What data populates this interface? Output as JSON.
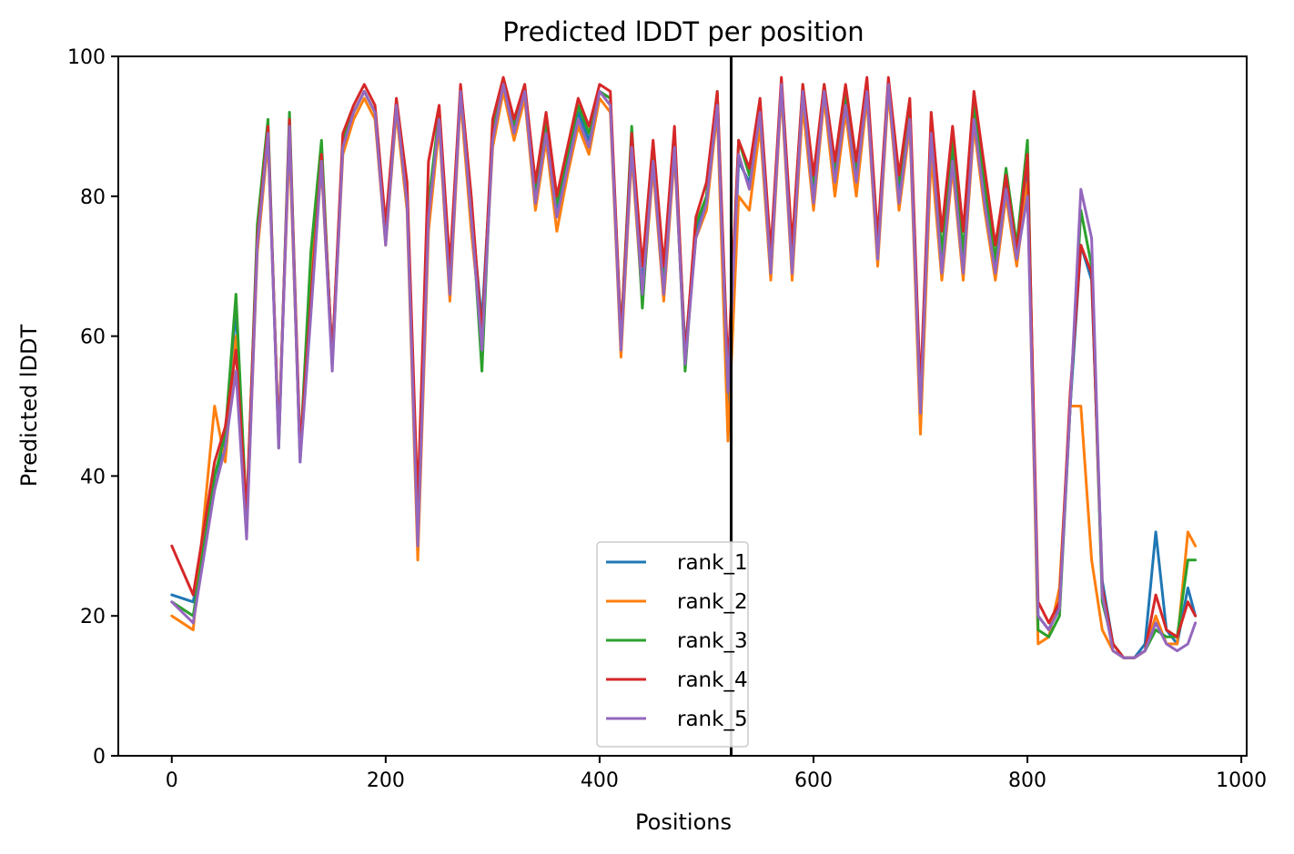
{
  "chart_data": {
    "type": "line",
    "title": "Predicted lDDT per position",
    "xlabel": "Positions",
    "ylabel": "Predicted lDDT",
    "xlim": [
      -50,
      1005
    ],
    "ylim": [
      0,
      100
    ],
    "x_ticks": [
      0,
      200,
      400,
      600,
      800,
      1000
    ],
    "y_ticks": [
      0,
      20,
      40,
      60,
      80,
      100
    ],
    "grid": false,
    "legend_position": "bottom-center",
    "vline_x": 523,
    "vline_color": "#000000",
    "x": [
      0,
      20,
      40,
      50,
      60,
      70,
      80,
      90,
      100,
      110,
      120,
      130,
      140,
      150,
      160,
      170,
      180,
      190,
      200,
      210,
      220,
      230,
      240,
      250,
      260,
      270,
      280,
      290,
      300,
      310,
      320,
      330,
      340,
      350,
      360,
      370,
      380,
      390,
      400,
      410,
      420,
      430,
      440,
      450,
      460,
      470,
      480,
      490,
      500,
      510,
      520,
      530,
      540,
      550,
      560,
      570,
      580,
      590,
      600,
      610,
      620,
      630,
      640,
      650,
      660,
      670,
      680,
      690,
      700,
      710,
      720,
      730,
      740,
      750,
      760,
      770,
      780,
      790,
      800,
      810,
      820,
      830,
      840,
      850,
      860,
      870,
      880,
      890,
      900,
      910,
      920,
      930,
      940,
      950,
      957
    ],
    "series": [
      {
        "name": "rank_1",
        "color": "#1f77b4",
        "values": [
          23,
          22,
          38,
          45,
          64,
          33,
          75,
          89,
          45,
          90,
          42,
          70,
          86,
          57,
          88,
          92,
          95,
          92,
          75,
          93,
          80,
          30,
          78,
          92,
          68,
          95,
          78,
          62,
          89,
          96,
          90,
          95,
          80,
          90,
          78,
          85,
          92,
          88,
          95,
          94,
          58,
          88,
          67,
          86,
          67,
          88,
          58,
          75,
          80,
          93,
          50,
          85,
          82,
          92,
          70,
          96,
          70,
          95,
          80,
          95,
          83,
          94,
          83,
          95,
          72,
          96,
          80,
          92,
          48,
          88,
          70,
          86,
          70,
          92,
          80,
          70,
          82,
          72,
          85,
          20,
          18,
          22,
          50,
          73,
          68,
          25,
          16,
          14,
          14,
          16,
          32,
          18,
          16,
          24,
          20
        ]
      },
      {
        "name": "rank_2",
        "color": "#ff7f0e",
        "values": [
          20,
          18,
          50,
          42,
          60,
          32,
          72,
          88,
          46,
          88,
          43,
          68,
          84,
          56,
          86,
          91,
          94,
          91,
          73,
          92,
          78,
          28,
          75,
          90,
          65,
          94,
          75,
          60,
          87,
          95,
          88,
          94,
          78,
          88,
          75,
          83,
          90,
          86,
          94,
          92,
          57,
          86,
          65,
          84,
          65,
          86,
          57,
          74,
          78,
          92,
          45,
          80,
          78,
          90,
          68,
          95,
          68,
          93,
          78,
          94,
          80,
          92,
          80,
          94,
          70,
          95,
          78,
          90,
          46,
          86,
          68,
          84,
          68,
          90,
          78,
          68,
          80,
          70,
          82,
          16,
          17,
          24,
          50,
          50,
          28,
          18,
          15,
          14,
          14,
          15,
          20,
          16,
          16,
          32,
          30
        ]
      },
      {
        "name": "rank_3",
        "color": "#2ca02c",
        "values": [
          22,
          20,
          40,
          46,
          66,
          34,
          76,
          91,
          44,
          92,
          43,
          72,
          88,
          56,
          88,
          92,
          95,
          92,
          74,
          93,
          80,
          31,
          79,
          92,
          68,
          95,
          79,
          55,
          90,
          96,
          90,
          96,
          81,
          91,
          79,
          86,
          93,
          89,
          95,
          94,
          60,
          90,
          64,
          87,
          69,
          88,
          55,
          76,
          80,
          95,
          52,
          88,
          83,
          93,
          71,
          96,
          72,
          96,
          82,
          96,
          84,
          95,
          84,
          96,
          73,
          96,
          82,
          93,
          50,
          90,
          72,
          88,
          72,
          93,
          82,
          71,
          84,
          73,
          88,
          18,
          17,
          20,
          50,
          78,
          70,
          22,
          16,
          14,
          14,
          15,
          18,
          17,
          17,
          28,
          28
        ]
      },
      {
        "name": "rank_4",
        "color": "#d62728",
        "values": [
          30,
          23,
          42,
          47,
          58,
          35,
          74,
          90,
          45,
          91,
          44,
          65,
          86,
          57,
          89,
          93,
          96,
          93,
          76,
          94,
          82,
          36,
          85,
          93,
          70,
          96,
          80,
          60,
          91,
          97,
          91,
          96,
          82,
          92,
          80,
          87,
          94,
          90,
          96,
          95,
          60,
          89,
          70,
          88,
          70,
          90,
          57,
          77,
          82,
          95,
          55,
          88,
          84,
          94,
          72,
          97,
          73,
          96,
          83,
          96,
          85,
          96,
          85,
          97,
          74,
          97,
          83,
          94,
          52,
          92,
          75,
          90,
          75,
          95,
          84,
          73,
          83,
          72,
          86,
          22,
          19,
          22,
          52,
          73,
          69,
          24,
          16,
          14,
          14,
          15,
          23,
          18,
          17,
          22,
          20
        ]
      },
      {
        "name": "rank_5",
        "color": "#9467bd",
        "values": [
          22,
          19,
          38,
          44,
          55,
          31,
          73,
          89,
          44,
          90,
          42,
          63,
          85,
          55,
          87,
          92,
          95,
          92,
          73,
          93,
          79,
          30,
          77,
          91,
          66,
          95,
          77,
          58,
          88,
          96,
          89,
          95,
          79,
          89,
          77,
          84,
          91,
          87,
          95,
          93,
          58,
          87,
          66,
          85,
          66,
          87,
          56,
          74,
          79,
          93,
          52,
          86,
          81,
          92,
          69,
          96,
          69,
          95,
          79,
          95,
          82,
          93,
          82,
          95,
          71,
          96,
          79,
          91,
          49,
          89,
          69,
          85,
          69,
          91,
          79,
          69,
          81,
          71,
          80,
          20,
          18,
          21,
          50,
          81,
          74,
          23,
          15,
          14,
          14,
          15,
          19,
          16,
          15,
          16,
          19
        ]
      }
    ]
  }
}
